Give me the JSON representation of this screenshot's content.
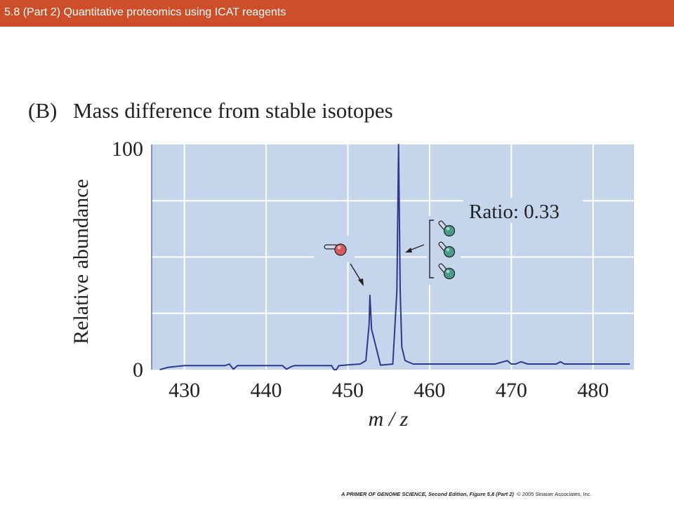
{
  "header": {
    "title": "5.8 (Part 2)  Quantitative proteomics using ICAT reagents"
  },
  "figure": {
    "panel_label": "(B)",
    "annotation": "Ratio: 0.33",
    "colors": {
      "plot_background": "#c5d6ec",
      "trace": "#2b3a8c",
      "light_label": "#d75a5e",
      "heavy_label": "#4a9b88",
      "header_bar": "#cc4f2a"
    },
    "icons": [
      "light-icat-tag-icon",
      "heavy-icat-tag-icon"
    ]
  },
  "chart_data": {
    "type": "line",
    "title": "Mass difference from stable isotopes",
    "xlabel": "m/z",
    "ylabel": "Relative abundance",
    "xlim": [
      426,
      485
    ],
    "ylim": [
      0,
      100
    ],
    "xticks": [
      "430",
      "440",
      "450",
      "460",
      "470",
      "480"
    ],
    "yticks": [
      "0",
      "100"
    ],
    "grid": true,
    "series": [
      {
        "x": [
          427,
          428,
          430,
          435,
          435.5,
          436,
          436.5,
          442,
          442.5,
          443,
          443.5,
          448,
          448.3,
          448.6,
          448.9,
          451.5,
          452.2,
          452.6,
          452.7,
          452.9,
          454,
          455.5,
          456,
          456.2,
          456.4,
          456.6,
          457,
          458,
          468,
          469.5,
          470,
          470.5,
          471.2,
          472,
          473,
          475.5,
          476,
          476.5,
          478,
          482,
          484.5
        ],
        "y": [
          0,
          1,
          1.8,
          1.8,
          2.5,
          0.2,
          1.8,
          1.8,
          0.2,
          1.2,
          1.8,
          1.8,
          0,
          0,
          1.8,
          2.5,
          4,
          20,
          33,
          18,
          2,
          2.5,
          35,
          100,
          35,
          10,
          4,
          2.5,
          2.5,
          4,
          2.5,
          2.5,
          3.5,
          2.5,
          2.5,
          2.5,
          3.5,
          2.5,
          2.5,
          2.5,
          2.5
        ]
      }
    ],
    "annotations": [
      "Ratio: 0.33"
    ]
  },
  "footer": {
    "book": "A PRIMER OF GENOME SCIENCE, Second Edition, Figure 5.8 (Part 2)",
    "copyright": "© 2005 Sinauer Associates, Inc."
  }
}
